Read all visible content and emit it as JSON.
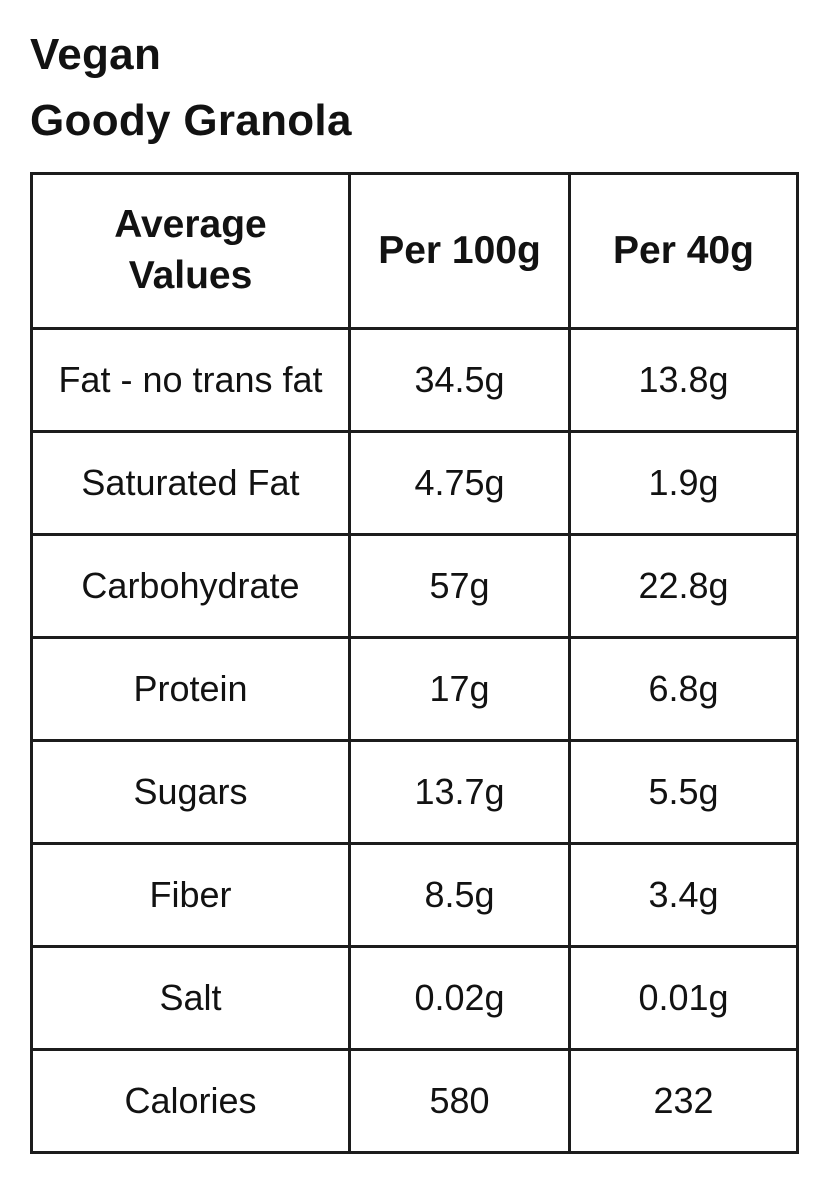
{
  "title": {
    "line1": "Vegan",
    "line2": "Goody Granola"
  },
  "table": {
    "headers": {
      "col1": "Average Values",
      "col2": "Per 100g",
      "col3": "Per 40g"
    },
    "rows": [
      {
        "label": "Fat - no trans fat",
        "per_100g": "34.5g",
        "per_40g": "13.8g"
      },
      {
        "label": "Saturated Fat",
        "per_100g": "4.75g",
        "per_40g": "1.9g"
      },
      {
        "label": "Carbohydrate",
        "per_100g": "57g",
        "per_40g": "22.8g"
      },
      {
        "label": "Protein",
        "per_100g": "17g",
        "per_40g": "6.8g"
      },
      {
        "label": "Sugars",
        "per_100g": "13.7g",
        "per_40g": "5.5g"
      },
      {
        "label": "Fiber",
        "per_100g": "8.5g",
        "per_40g": "3.4g"
      },
      {
        "label": "Salt",
        "per_100g": "0.02g",
        "per_40g": "0.01g"
      },
      {
        "label": "Calories",
        "per_100g": "580",
        "per_40g": "232"
      }
    ]
  },
  "colors": {
    "background": "#ffffff",
    "text": "#121212",
    "border": "#1c1c1c"
  }
}
